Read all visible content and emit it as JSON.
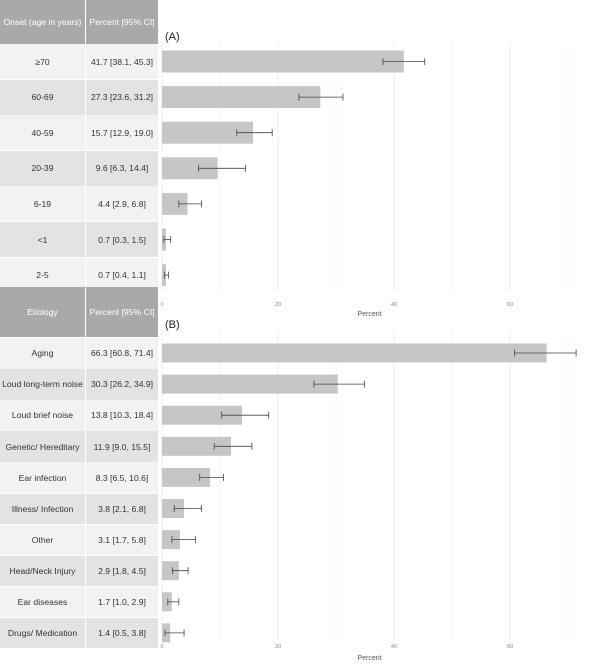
{
  "table_a": {
    "headers": [
      "Onset (age in years)",
      "Percent [95% CI]"
    ],
    "rows": [
      {
        "label": "≥70",
        "value": "41.7 [38.1, 45.3]"
      },
      {
        "label": "60-69",
        "value": "27.3 [23.6, 31.2]"
      },
      {
        "label": "40-59",
        "value": "15.7 [12.9, 19.0]"
      },
      {
        "label": "20-39",
        "value": "9.6 [6.3, 14.4]"
      },
      {
        "label": "6-19",
        "value": "4.4 [2.9, 6.8]"
      },
      {
        "label": "<1",
        "value": "0.7 [0.3, 1.5]"
      },
      {
        "label": "2-5",
        "value": "0.7 [0.4, 1.1]"
      }
    ]
  },
  "table_b": {
    "headers": [
      "Etiology",
      "Percent  [95% CI]"
    ],
    "rows": [
      {
        "label": "Aging",
        "value": "66.3 [60.8, 71.4]"
      },
      {
        "label": "Loud long-term noise",
        "value": "30.3 [26.2, 34.9]"
      },
      {
        "label": "Loud brief noise",
        "value": "13.8 [10.3, 18.4]"
      },
      {
        "label": "Genetic/ Hereditary",
        "value": "11.9 [9.0, 15.5]"
      },
      {
        "label": "Ear infection",
        "value": "8.3 [6.5, 10.6]"
      },
      {
        "label": "Illness/ Infection",
        "value": "3.8 [2.1, 6.8]"
      },
      {
        "label": "Other",
        "value": "3.1 [1.7, 5.8]"
      },
      {
        "label": "Head/Neck Injury",
        "value": "2.9 [1.8, 4.5]"
      },
      {
        "label": "Ear diseases",
        "value": "1.7 [1.0, 2.9]"
      },
      {
        "label": "Drugs/ Medication",
        "value": "1.4 [0.5, 3.8]"
      }
    ]
  },
  "chart_data": [
    {
      "type": "bar",
      "orientation": "horizontal",
      "title": "(A)",
      "xlabel": "Percent",
      "xlim": [
        0,
        75
      ],
      "xticks": [
        0,
        20,
        40,
        60
      ],
      "grid": true,
      "bar_color": "#c6c6c6",
      "categories": [
        "≥70",
        "60-69",
        "40-59",
        "20-39",
        "6-19",
        "<1",
        "2-5"
      ],
      "values": [
        41.7,
        27.3,
        15.7,
        9.6,
        4.4,
        0.7,
        0.7
      ],
      "ci_low": [
        38.1,
        23.6,
        12.9,
        6.3,
        2.9,
        0.3,
        0.4
      ],
      "ci_high": [
        45.3,
        31.2,
        19.0,
        14.4,
        6.8,
        1.5,
        1.1
      ]
    },
    {
      "type": "bar",
      "orientation": "horizontal",
      "title": "(B)",
      "xlabel": "Percent",
      "xlim": [
        0,
        75
      ],
      "xticks": [
        0,
        20,
        40,
        60
      ],
      "grid": true,
      "bar_color": "#c6c6c6",
      "categories": [
        "Aging",
        "Loud long-term noise",
        "Loud brief noise",
        "Genetic/ Hereditary",
        "Ear infection",
        "Illness/ Infection",
        "Other",
        "Head/Neck Injury",
        "Ear diseases",
        "Drugs/ Medication"
      ],
      "values": [
        66.3,
        30.3,
        13.8,
        11.9,
        8.3,
        3.8,
        3.1,
        2.9,
        1.7,
        1.4
      ],
      "ci_low": [
        60.8,
        26.2,
        10.3,
        9.0,
        6.5,
        2.1,
        1.7,
        1.8,
        1.0,
        0.5
      ],
      "ci_high": [
        71.4,
        34.9,
        18.4,
        15.5,
        10.6,
        6.8,
        5.8,
        4.5,
        2.9,
        3.8
      ]
    }
  ]
}
